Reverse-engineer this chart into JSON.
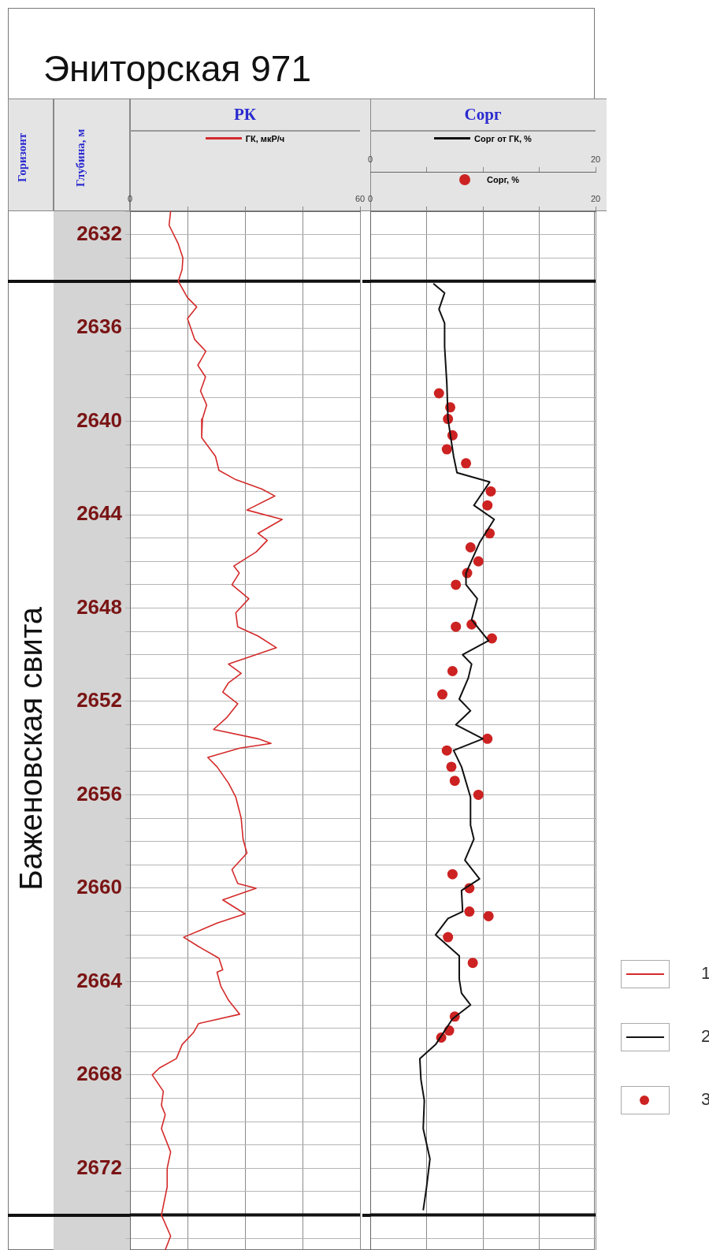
{
  "chart_data": [
    {
      "type": "line",
      "title": "Эниторская 971",
      "subtitle": "РК",
      "ylabel": "Глубина, м",
      "annotations": [
        "Горизонт",
        "Баженовская свита"
      ],
      "legend": "top",
      "grid": true,
      "marker": "none",
      "xlim": [
        0,
        60
      ],
      "xticks": [
        0,
        {
          "value": 15,
          "label": null
        },
        {
          "value": 30,
          "label": null
        },
        {
          "value": 45,
          "label": null
        },
        60
      ],
      "ylim": [
        2675.5,
        2631
      ],
      "yticks": [
        {
          "value": 2631,
          "label": null
        },
        2632,
        {
          "value": 2633,
          "label": null
        },
        {
          "value": 2635,
          "label": null
        },
        2636,
        {
          "value": 2637,
          "label": null
        },
        {
          "value": 2638,
          "label": null
        },
        {
          "value": 2639,
          "label": null
        },
        2640,
        {
          "value": 2641,
          "label": null
        },
        {
          "value": 2642,
          "label": null
        },
        {
          "value": 2643,
          "label": null
        },
        2644,
        {
          "value": 2645,
          "label": null
        },
        {
          "value": 2646,
          "label": null
        },
        {
          "value": 2647,
          "label": null
        },
        2648,
        {
          "value": 2649,
          "label": null
        },
        {
          "value": 2650,
          "label": null
        },
        {
          "value": 2651,
          "label": null
        },
        2652,
        {
          "value": 2653,
          "label": null
        },
        {
          "value": 2654,
          "label": null
        },
        {
          "value": 2655,
          "label": null
        },
        2656,
        {
          "value": 2657,
          "label": null
        },
        {
          "value": 2658,
          "label": null
        },
        {
          "value": 2659,
          "label": null
        },
        2660,
        {
          "value": 2661,
          "label": null
        },
        {
          "value": 2662,
          "label": null
        },
        {
          "value": 2663,
          "label": null
        },
        2664,
        {
          "value": 2665,
          "label": null
        },
        {
          "value": 2666,
          "label": null
        },
        {
          "value": 2667,
          "label": null
        },
        2668,
        {
          "value": 2669,
          "label": null
        },
        {
          "value": 2670,
          "label": null
        },
        {
          "value": 2671,
          "label": null
        },
        2672,
        {
          "value": 2673,
          "label": null
        },
        {
          "value": 2675,
          "label": null
        }
      ],
      "ref_lines": [
        {
          "axis": "y",
          "value": 2634,
          "color": "#111111"
        },
        {
          "axis": "y",
          "value": 2674,
          "color": "#111111"
        }
      ],
      "series": [
        {
          "name": "ГК, мкР/ч",
          "color": "#d42a2a",
          "x": [
            10.6,
            10.2,
            12.6,
            13.8,
            13.6,
            12.6,
            15.0,
            17.4,
            15.0,
            16.9,
            19.8,
            17.7,
            19.7,
            18.4,
            20.0,
            18.9,
            18.7,
            22.3,
            23.2,
            27.6,
            34.4,
            37.8,
            30.5,
            39.7,
            33.4,
            35.8,
            32.9,
            27.1,
            28.5,
            26.6,
            31.0,
            27.6,
            28.1,
            33.4,
            38.2,
            31.0,
            25.7,
            29.0,
            25.7,
            24.2,
            28.1,
            25.2,
            21.8,
            33.4,
            36.8,
            28.6,
            20.3,
            22.7,
            25.7,
            27.6,
            29.0,
            29.5,
            30.5,
            26.6,
            28.1,
            32.9,
            24.2,
            30.0,
            22.7,
            14.0,
            17.9,
            23.2,
            24.2,
            22.7,
            23.7,
            25.7,
            28.6,
            17.9,
            16.5,
            13.6,
            12.1,
            7.7,
            5.8,
            8.7,
            8.2,
            9.2,
            8.2,
            10.6,
            9.7,
            9.7,
            8.2,
            10.6,
            9.2
          ],
          "values": [
            2631.0,
            2631.6,
            2632.4,
            2633.0,
            2633.5,
            2634.0,
            2634.7,
            2635.1,
            2635.6,
            2636.5,
            2637.0,
            2637.6,
            2638.1,
            2638.7,
            2639.3,
            2639.9,
            2640.7,
            2641.5,
            2642.1,
            2642.5,
            2642.9,
            2643.2,
            2643.8,
            2644.2,
            2644.8,
            2645.1,
            2645.6,
            2646.2,
            2646.5,
            2647.0,
            2647.6,
            2648.2,
            2648.8,
            2649.2,
            2649.7,
            2650.1,
            2650.4,
            2650.8,
            2651.2,
            2651.6,
            2652.1,
            2652.7,
            2653.2,
            2653.6,
            2653.8,
            2654.0,
            2654.4,
            2654.8,
            2655.5,
            2656.1,
            2657.0,
            2657.9,
            2658.5,
            2659.2,
            2659.8,
            2660.0,
            2660.5,
            2661.1,
            2661.5,
            2662.1,
            2662.5,
            2663.0,
            2663.5,
            2663.6,
            2664.2,
            2664.8,
            2665.4,
            2665.8,
            2666.2,
            2666.7,
            2667.3,
            2667.7,
            2668.0,
            2668.7,
            2669.3,
            2669.7,
            2670.3,
            2671.3,
            2672.0,
            2672.8,
            2674.0,
            2674.9,
            2675.5
          ]
        }
      ]
    },
    {
      "type": "line",
      "title": "Сорг",
      "annotations": [
        "1",
        "2",
        "3"
      ],
      "legend": "top",
      "grid": true,
      "tick_labels": "x",
      "xlim": [
        0,
        20
      ],
      "xticks": [
        0,
        {
          "value": 5,
          "label": null
        },
        {
          "value": 10,
          "label": null
        },
        {
          "value": 15,
          "label": null
        },
        20
      ],
      "x2lim": [
        0,
        20
      ],
      "x2ticks": [
        0,
        {
          "value": 5,
          "label": null
        },
        {
          "value": 10,
          "label": null
        },
        {
          "value": 15,
          "label": null
        },
        20
      ],
      "ylim": [
        2675.5,
        2631
      ],
      "yticks": [
        {
          "value": 2631,
          "label": null
        },
        2632,
        {
          "value": 2633,
          "label": null
        },
        {
          "value": 2635,
          "label": null
        },
        2636,
        {
          "value": 2637,
          "label": null
        },
        {
          "value": 2638,
          "label": null
        },
        {
          "value": 2639,
          "label": null
        },
        2640,
        {
          "value": 2641,
          "label": null
        },
        {
          "value": 2642,
          "label": null
        },
        {
          "value": 2643,
          "label": null
        },
        2644,
        {
          "value": 2645,
          "label": null
        },
        {
          "value": 2646,
          "label": null
        },
        {
          "value": 2647,
          "label": null
        },
        2648,
        {
          "value": 2649,
          "label": null
        },
        {
          "value": 2650,
          "label": null
        },
        {
          "value": 2651,
          "label": null
        },
        2652,
        {
          "value": 2653,
          "label": null
        },
        {
          "value": 2654,
          "label": null
        },
        {
          "value": 2655,
          "label": null
        },
        2656,
        {
          "value": 2657,
          "label": null
        },
        {
          "value": 2658,
          "label": null
        },
        {
          "value": 2659,
          "label": null
        },
        2660,
        {
          "value": 2661,
          "label": null
        },
        {
          "value": 2662,
          "label": null
        },
        {
          "value": 2663,
          "label": null
        },
        2664,
        {
          "value": 2665,
          "label": null
        },
        {
          "value": 2666,
          "label": null
        },
        {
          "value": 2667,
          "label": null
        },
        2668,
        {
          "value": 2669,
          "label": null
        },
        {
          "value": 2670,
          "label": null
        },
        {
          "value": 2671,
          "label": null
        },
        2672,
        {
          "value": 2673,
          "label": null
        },
        {
          "value": 2675,
          "label": null
        }
      ],
      "ref_lines": [
        {
          "axis": "y",
          "value": 2634,
          "color": "#111111"
        },
        {
          "axis": "y",
          "value": 2674,
          "color": "#111111"
        }
      ],
      "series": [
        {
          "name": "Сорг от ГК, %",
          "color": "#111111",
          "marker": "none",
          "x": [
            5.6,
            6.6,
            6.1,
            6.6,
            6.6,
            6.8,
            6.9,
            7.4,
            7.7,
            10.6,
            9.2,
            11.0,
            9.7,
            8.5,
            8.5,
            9.5,
            9.0,
            10.5,
            8.2,
            9.0,
            8.7,
            7.9,
            8.9,
            7.6,
            10.0,
            7.4,
            8.1,
            8.9,
            8.9,
            9.2,
            8.4,
            9.7,
            8.1,
            8.2,
            6.9,
            5.8,
            7.9,
            7.9,
            8.1,
            8.9,
            7.3,
            5.8,
            4.4,
            4.5,
            4.8,
            4.7,
            5.3,
            5.0,
            4.7
          ],
          "values": [
            2634.1,
            2634.5,
            2635.2,
            2635.8,
            2636.8,
            2638.4,
            2639.9,
            2641.5,
            2642.2,
            2642.6,
            2643.6,
            2644.2,
            2645.2,
            2646.5,
            2647.0,
            2647.6,
            2648.5,
            2649.4,
            2650.0,
            2650.4,
            2651.0,
            2651.9,
            2652.4,
            2653.0,
            2653.6,
            2654.1,
            2654.8,
            2656.1,
            2657.3,
            2657.9,
            2658.8,
            2659.6,
            2660.1,
            2661.0,
            2661.3,
            2662.0,
            2662.9,
            2663.9,
            2664.5,
            2665.0,
            2665.6,
            2666.7,
            2667.3,
            2668.2,
            2669.1,
            2670.3,
            2671.6,
            2672.8,
            2673.8
          ]
        },
        {
          "name": "Сорг, %",
          "type": "scatter",
          "axis": "x2",
          "color": "#cc2222",
          "marker": "circle",
          "x": [
            6.1,
            7.1,
            6.9,
            7.3,
            6.8,
            8.5,
            10.7,
            10.4,
            10.6,
            8.9,
            9.6,
            8.6,
            7.6,
            7.6,
            9.0,
            10.8,
            7.3,
            6.4,
            10.4,
            6.8,
            7.2,
            7.5,
            9.6,
            7.3,
            8.8,
            8.8,
            10.5,
            6.9,
            9.1,
            7.5,
            7.0,
            6.3
          ],
          "values": [
            2638.8,
            2639.4,
            2639.9,
            2640.6,
            2641.2,
            2641.8,
            2643.0,
            2643.6,
            2644.8,
            2645.4,
            2646.0,
            2646.5,
            2647.0,
            2648.8,
            2648.7,
            2649.3,
            2650.7,
            2651.7,
            2653.6,
            2654.1,
            2654.8,
            2655.4,
            2656.0,
            2659.4,
            2660.0,
            2661.0,
            2661.2,
            2662.1,
            2663.2,
            2665.5,
            2666.1,
            2666.4
          ]
        }
      ]
    }
  ]
}
